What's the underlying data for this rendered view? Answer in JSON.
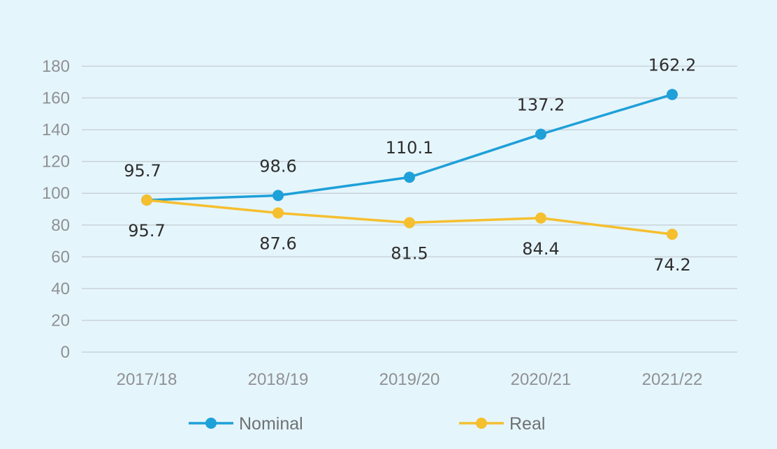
{
  "chart_data": {
    "type": "line",
    "title": "",
    "xlabel": "",
    "ylabel": "",
    "categories": [
      "2017/18",
      "2018/19",
      "2019/20",
      "2020/21",
      "2021/22"
    ],
    "ylim": [
      0,
      180
    ],
    "yticks": [
      "0",
      "20",
      "40",
      "60",
      "80",
      "100",
      "120",
      "140",
      "160",
      "180"
    ],
    "grid": true,
    "legend_position": "bottom",
    "series": [
      {
        "name": "Nominal",
        "color": "#1ea0d8",
        "values": [
          95.7,
          98.6,
          110.1,
          137.2,
          162.2
        ],
        "labels": [
          "95.7",
          "98.6",
          "110.1",
          "137.2",
          "162.2"
        ],
        "label_position": "above"
      },
      {
        "name": "Real",
        "color": "#f5bf2f",
        "values": [
          95.7,
          87.6,
          81.5,
          84.4,
          74.2
        ],
        "labels": [
          "95.7",
          "87.6",
          "81.5",
          "84.4",
          "74.2"
        ],
        "label_position": "below"
      }
    ]
  }
}
